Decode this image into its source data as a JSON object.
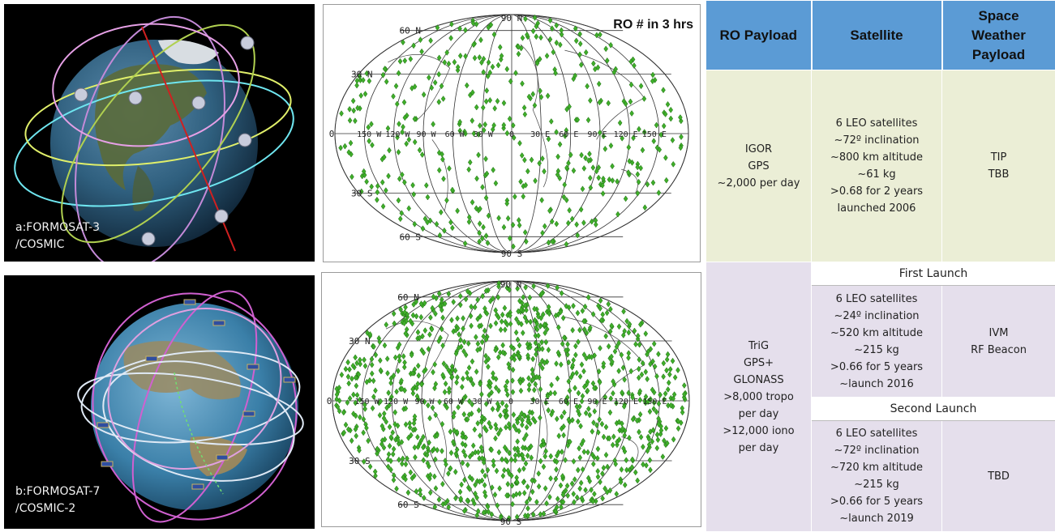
{
  "panels": {
    "top": {
      "caption_line1": "a:FORMOSAT-3",
      "caption_line2": "/COSMIC"
    },
    "bottom": {
      "caption_line1": "b:FORMOSAT-7",
      "caption_line2": "/COSMIC-2"
    }
  },
  "maps": {
    "title": "RO # in 3 hrs",
    "pole_north": "90 N",
    "pole_south": "90 S",
    "lat_labels": [
      "60 N",
      "30 N",
      "0",
      "30 S",
      "60 S"
    ],
    "lon_labels": [
      "150 W",
      "120 W",
      "90 W",
      "60 W",
      "30 W",
      "0",
      "30 E",
      "60 E",
      "90 E",
      "120 E",
      "150 E"
    ],
    "marker_color": "#3fae2a"
  },
  "table": {
    "headers": [
      "RO Payload",
      "Satellite",
      "Space Weather Payload"
    ],
    "cosmic": {
      "ro_payload": [
        "IGOR",
        "GPS",
        "~2,000 per day"
      ],
      "satellite": [
        "6 LEO satellites",
        "~72º inclination",
        "~800 km altitude",
        "~61 kg",
        ">0.68 for 2 years",
        "launched 2006"
      ],
      "space_weather": [
        "TIP",
        "TBB"
      ]
    },
    "cosmic2": {
      "ro_payload": [
        "TriG",
        "GPS+",
        "GLONASS",
        ">8,000 tropo",
        "per day",
        ">12,000 iono",
        "per day"
      ],
      "first_launch_label": "First Launch",
      "first_satellite": [
        "6 LEO satellites",
        "~24º inclination",
        "~520 km altitude",
        "~215 kg",
        ">0.66 for 5 years",
        "~launch 2016"
      ],
      "first_space_weather": [
        "IVM",
        "RF Beacon"
      ],
      "second_launch_label": "Second Launch",
      "second_satellite": [
        "6 LEO satellites",
        "~72º inclination",
        "~720 km altitude",
        "~215 kg",
        ">0.66 for 5 years",
        "~launch 2019"
      ],
      "second_space_weather": [
        "TBD"
      ]
    }
  }
}
